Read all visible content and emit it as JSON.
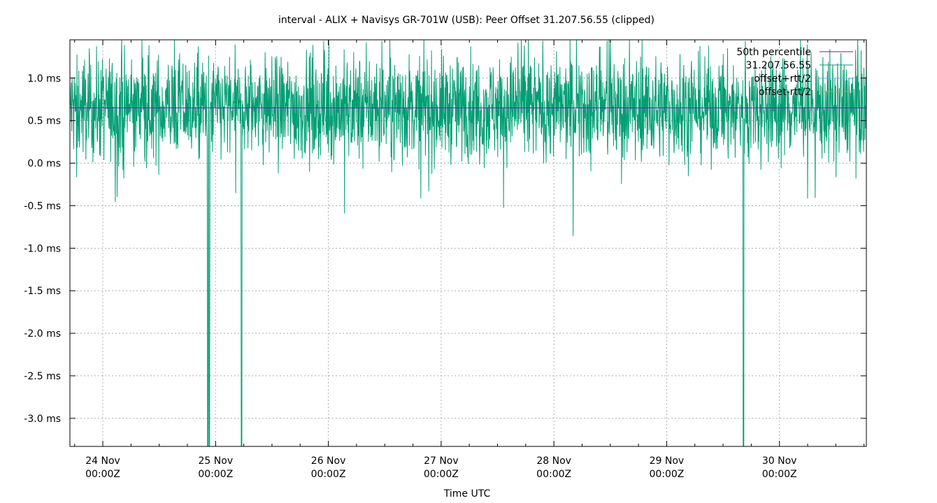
{
  "chart_data": {
    "type": "line",
    "title": "interval - ALIX + Navisys GR-701W (USB): Peer Offset 31.207.56.55 (clipped)",
    "xlabel": "Time UTC",
    "ylabel": "",
    "xlim": [
      "2022-11-23T17:00:00Z",
      "2022-11-30T18:30:00Z"
    ],
    "ylim": [
      -3.33,
      1.45
    ],
    "yticks": [
      {
        "value": 1.0,
        "label": "1.0 ms"
      },
      {
        "value": 0.5,
        "label": "0.5 ms"
      },
      {
        "value": 0.0,
        "label": "0.0 ms"
      },
      {
        "value": -0.5,
        "label": "-0.5 ms"
      },
      {
        "value": -1.0,
        "label": "-1.0 ms"
      },
      {
        "value": -1.5,
        "label": "-1.5 ms"
      },
      {
        "value": -2.0,
        "label": "-2.0 ms"
      },
      {
        "value": -2.5,
        "label": "-2.5 ms"
      },
      {
        "value": -3.0,
        "label": "-3.0 ms"
      }
    ],
    "xticks": [
      {
        "value": "2022-11-24T00:00:00Z",
        "line1": "24 Nov",
        "line2": "00:00Z"
      },
      {
        "value": "2022-11-25T00:00:00Z",
        "line1": "25 Nov",
        "line2": "00:00Z"
      },
      {
        "value": "2022-11-26T00:00:00Z",
        "line1": "26 Nov",
        "line2": "00:00Z"
      },
      {
        "value": "2022-11-27T00:00:00Z",
        "line1": "27 Nov",
        "line2": "00:00Z"
      },
      {
        "value": "2022-11-28T00:00:00Z",
        "line1": "28 Nov",
        "line2": "00:00Z"
      },
      {
        "value": "2022-11-29T00:00:00Z",
        "line1": "29 Nov",
        "line2": "00:00Z"
      },
      {
        "value": "2022-11-30T00:00:00Z",
        "line1": "30 Nov",
        "line2": "00:00Z"
      }
    ],
    "grid": true,
    "legend_position": "top-right",
    "series": [
      {
        "name": "50th percentile",
        "color": "#9400d3",
        "kind": "hline",
        "value": 0.65
      },
      {
        "name": "31.207.56.55",
        "color": "#009e73",
        "kind": "noisy-line",
        "baseline": 0.65,
        "approx_range": [
          -0.6,
          1.45
        ],
        "spikes": [
          {
            "t": "2022-11-24T22:20:00Z",
            "min": -3.33
          },
          {
            "t": "2022-11-24T22:40:00Z",
            "min": -3.33
          },
          {
            "t": "2022-11-25T05:30:00Z",
            "min": -3.33
          },
          {
            "t": "2022-11-29T16:20:00Z",
            "min": -3.33
          }
        ]
      },
      {
        "name": "offset+rtt/2",
        "color": "#56b4e9",
        "kind": "legend-only"
      },
      {
        "name": "offset-rtt/2",
        "color": "#e69f00",
        "kind": "legend-only"
      }
    ]
  }
}
